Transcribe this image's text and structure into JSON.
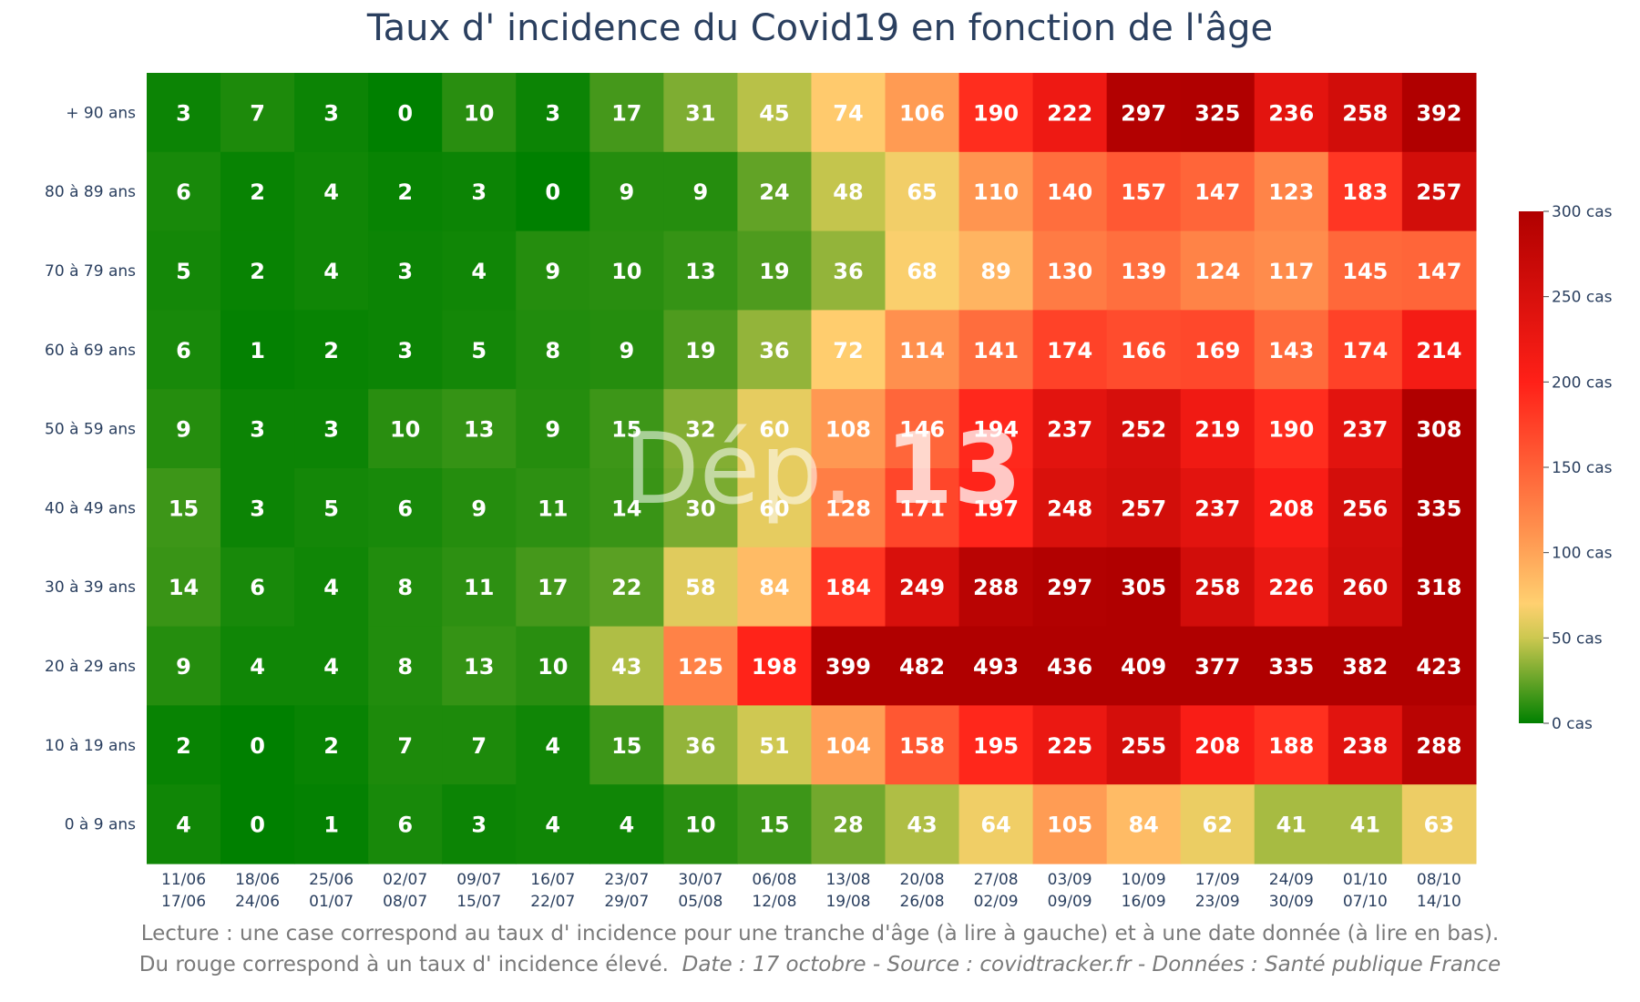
{
  "chart_data": {
    "type": "heatmap",
    "title": "Taux d' incidence du Covid19 en fonction de l'âge",
    "watermark": {
      "prefix": "Dép.",
      "number": "13"
    },
    "y_categories": [
      "+ 90 ans",
      "80 à 89 ans",
      "70 à 79 ans",
      "60 à 69 ans",
      "50 à 59 ans",
      "40 à 49 ans",
      "30 à 39 ans",
      "20 à 29 ans",
      "10 à 19 ans",
      "0 à 9 ans"
    ],
    "x_categories": [
      [
        "11/06",
        "17/06"
      ],
      [
        "18/06",
        "24/06"
      ],
      [
        "25/06",
        "01/07"
      ],
      [
        "02/07",
        "08/07"
      ],
      [
        "09/07",
        "15/07"
      ],
      [
        "16/07",
        "22/07"
      ],
      [
        "23/07",
        "29/07"
      ],
      [
        "30/07",
        "05/08"
      ],
      [
        "06/08",
        "12/08"
      ],
      [
        "13/08",
        "19/08"
      ],
      [
        "20/08",
        "26/08"
      ],
      [
        "27/08",
        "02/09"
      ],
      [
        "03/09",
        "09/09"
      ],
      [
        "10/09",
        "16/09"
      ],
      [
        "17/09",
        "23/09"
      ],
      [
        "24/09",
        "30/09"
      ],
      [
        "01/10",
        "07/10"
      ],
      [
        "08/10",
        "14/10"
      ]
    ],
    "values": [
      [
        3,
        7,
        3,
        0,
        10,
        3,
        17,
        31,
        45,
        74,
        106,
        190,
        222,
        297,
        325,
        236,
        258,
        392
      ],
      [
        6,
        2,
        4,
        2,
        3,
        0,
        9,
        9,
        24,
        48,
        65,
        110,
        140,
        157,
        147,
        123,
        183,
        257
      ],
      [
        5,
        2,
        4,
        3,
        4,
        9,
        10,
        13,
        19,
        36,
        68,
        89,
        130,
        139,
        124,
        117,
        145,
        147
      ],
      [
        6,
        1,
        2,
        3,
        5,
        8,
        9,
        19,
        36,
        72,
        114,
        141,
        174,
        166,
        169,
        143,
        174,
        214
      ],
      [
        9,
        3,
        3,
        10,
        13,
        9,
        15,
        32,
        60,
        108,
        146,
        194,
        237,
        252,
        219,
        190,
        237,
        308
      ],
      [
        15,
        3,
        5,
        6,
        9,
        11,
        14,
        30,
        60,
        128,
        171,
        197,
        248,
        257,
        237,
        208,
        256,
        335
      ],
      [
        14,
        6,
        4,
        8,
        11,
        17,
        22,
        58,
        84,
        184,
        249,
        288,
        297,
        305,
        258,
        226,
        260,
        318
      ],
      [
        9,
        4,
        4,
        8,
        13,
        10,
        43,
        125,
        198,
        399,
        482,
        493,
        436,
        409,
        377,
        335,
        382,
        423
      ],
      [
        2,
        0,
        2,
        7,
        7,
        4,
        15,
        36,
        51,
        104,
        158,
        195,
        225,
        255,
        208,
        188,
        238,
        288
      ],
      [
        4,
        0,
        1,
        6,
        3,
        4,
        4,
        10,
        15,
        28,
        43,
        64,
        105,
        84,
        62,
        41,
        41,
        63
      ]
    ],
    "colorscale": {
      "range": [
        0,
        300
      ],
      "stops": [
        {
          "v": 0,
          "color": "#008000"
        },
        {
          "v": 50,
          "color": "#ccc850"
        },
        {
          "v": 70,
          "color": "#ffd070"
        },
        {
          "v": 110,
          "color": "#ff9550"
        },
        {
          "v": 200,
          "color": "#ff2018"
        },
        {
          "v": 300,
          "color": "#b00000"
        }
      ],
      "ticks": [
        {
          "v": 300,
          "label": "300 cas"
        },
        {
          "v": 250,
          "label": "250 cas"
        },
        {
          "v": 200,
          "label": "200 cas"
        },
        {
          "v": 150,
          "label": "150 cas"
        },
        {
          "v": 100,
          "label": "100 cas"
        },
        {
          "v": 50,
          "label": "50 cas"
        },
        {
          "v": 0,
          "label": "0 cas"
        }
      ]
    },
    "caption": {
      "line1": "Lecture : une case correspond au taux d' incidence pour une tranche d'âge (à lire à gauche) et à une date donnée (à lire en bas).",
      "line2_plain": "Du rouge correspond à un taux d' incidence élevé.",
      "line2_source": "Date : 17 octobre - Source : covidtracker.fr - Données : Santé publique France"
    }
  }
}
